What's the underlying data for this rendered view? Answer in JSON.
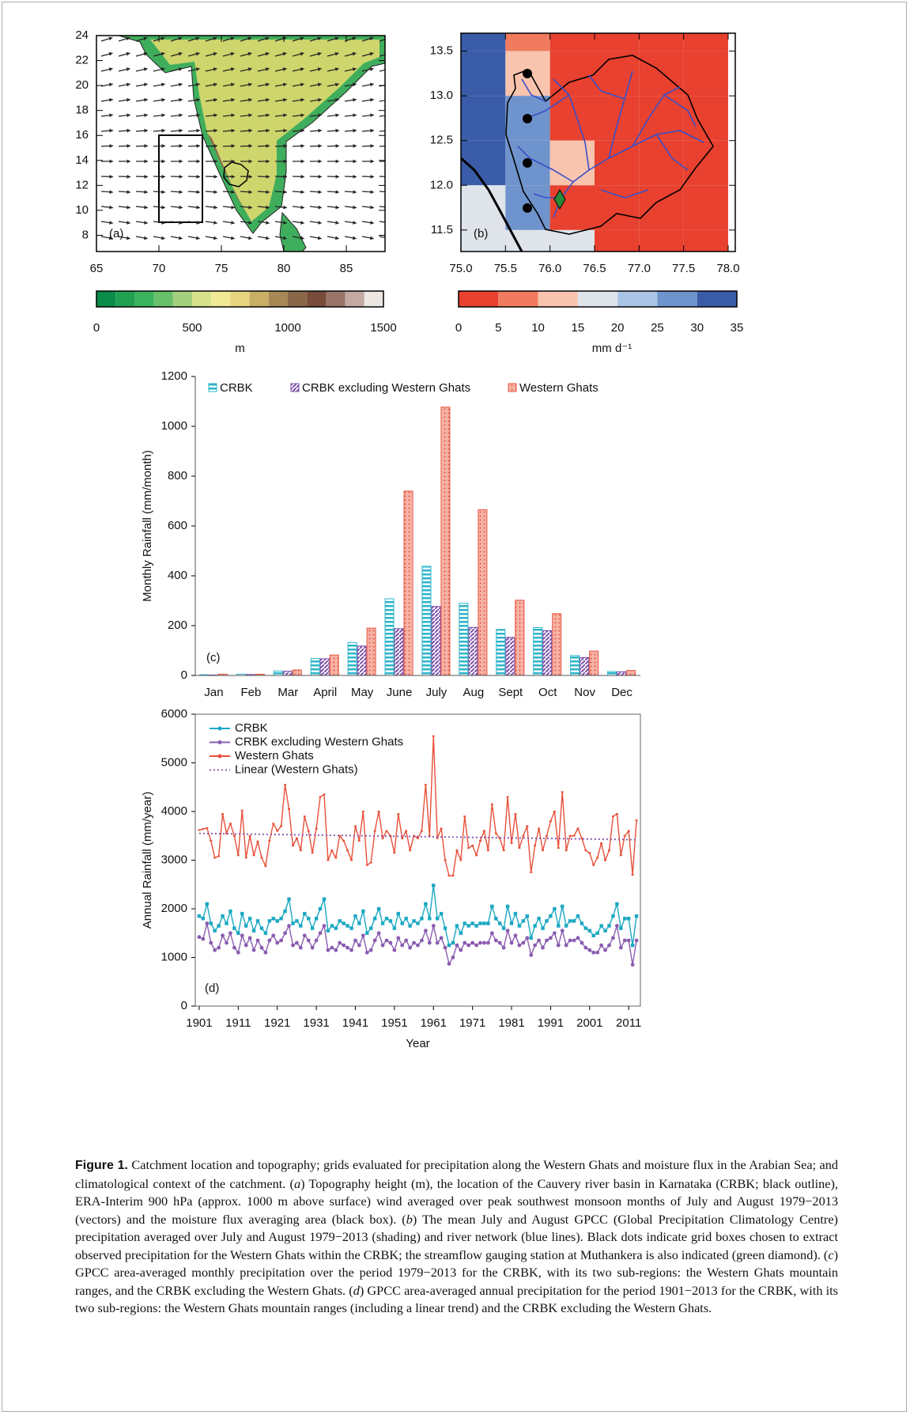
{
  "chart_data": [
    {
      "type": "map",
      "panel_label": "(a)",
      "xlim": [
        65,
        88.1
      ],
      "ylim": [
        6.7,
        24
      ],
      "xticks": [
        65,
        70,
        75,
        80,
        85
      ],
      "yticks": [
        8,
        10,
        12,
        14,
        16,
        18,
        20,
        22,
        24
      ],
      "colorbar": {
        "lim": [
          0,
          1500
        ],
        "ticks": [
          0,
          500,
          1000,
          1500
        ],
        "label": "m",
        "colors": [
          "#0b8c48",
          "#1fa052",
          "#3bb25e",
          "#69c06a",
          "#a2d07c",
          "#d7e28b",
          "#f0e995",
          "#e7d47f",
          "#c9ae66",
          "#a88855",
          "#8a6749",
          "#774c3b",
          "#9a7468",
          "#c4a8a2",
          "#ece6e3"
        ]
      }
    },
    {
      "type": "map",
      "panel_label": "(b)",
      "xlim": [
        75,
        78.08
      ],
      "ylim": [
        11.26,
        13.7
      ],
      "xticks": [
        {
          "value": 75,
          "label": "75.0"
        },
        75.5,
        {
          "value": 76,
          "label": "76.0"
        },
        76.5,
        {
          "value": 77,
          "label": "77.0"
        },
        77.5,
        {
          "value": 78,
          "label": "78.0"
        }
      ],
      "yticks": [
        11.5,
        {
          "value": 12,
          "label": "12.0"
        },
        12.5,
        {
          "value": 13,
          "label": "13.0"
        },
        13.5
      ],
      "cells": {
        "lon": [
          75.25,
          75.75,
          76.25,
          76.75,
          77.25,
          77.75
        ],
        "lat": [
          13.75,
          13.25,
          12.75,
          12.25,
          11.75,
          11.25
        ],
        "size": 0.5,
        "values": [
          [
            32,
            7,
            3,
            3,
            3,
            3
          ],
          [
            32,
            12,
            3,
            3,
            3,
            3
          ],
          [
            32,
            27,
            3,
            3,
            3,
            3
          ],
          [
            32,
            27,
            11,
            3,
            3,
            3
          ],
          [
            17,
            25,
            3,
            3,
            3,
            3
          ],
          [
            17,
            17,
            15,
            3,
            3,
            3
          ]
        ]
      },
      "colorbar": {
        "lim": [
          0,
          35
        ],
        "ticks": [
          0,
          5,
          10,
          15,
          20,
          25,
          30,
          35
        ],
        "label": "mm d⁻¹",
        "colors": [
          "#e8412f",
          "#f07b5f",
          "#f8c4ae",
          "#dfe4ea",
          "#a9c4e4",
          "#6f93cc",
          "#3a5ca8"
        ]
      }
    },
    {
      "type": "bar",
      "panel_label": "(c)",
      "ylabel": "Monthly Rainfall (mm/month)",
      "categories": [
        "Jan",
        "Feb",
        "Mar",
        "April",
        "May",
        "June",
        "July",
        "Aug",
        "Sept",
        "Oct",
        "Nov",
        "Dec"
      ],
      "ylim": [
        0,
        1200
      ],
      "yticks": [
        0,
        200,
        400,
        600,
        800,
        1000,
        1200
      ],
      "series": [
        {
          "name": "CRBK",
          "color": "#2bb5c9",
          "values": [
            3,
            5,
            18,
            68,
            132,
            308,
            438,
            290,
            185,
            192,
            80,
            16
          ]
        },
        {
          "name": "CRBK excluding Western Ghats",
          "color": "#7b4fa8",
          "values": [
            2,
            4,
            17,
            67,
            118,
            188,
            277,
            193,
            153,
            180,
            72,
            15
          ]
        },
        {
          "name": "Western Ghats",
          "color": "#e8543f",
          "values": [
            5,
            5,
            22,
            82,
            190,
            740,
            1077,
            665,
            302,
            248,
            98,
            20
          ]
        }
      ]
    },
    {
      "type": "line",
      "panel_label": "(d)",
      "ylabel": "Annual Rainfall (mm/year)",
      "xlabel": "Year",
      "xlim": [
        1900,
        2014
      ],
      "xticks": [
        1901,
        1911,
        1921,
        1931,
        1941,
        1951,
        1961,
        1971,
        1981,
        1991,
        2001,
        2011
      ],
      "ylim": [
        0,
        6000
      ],
      "yticks": [
        0,
        1000,
        2000,
        3000,
        4000,
        5000,
        6000
      ],
      "x": [
        1901,
        1902,
        1903,
        1904,
        1905,
        1906,
        1907,
        1908,
        1909,
        1910,
        1911,
        1912,
        1913,
        1914,
        1915,
        1916,
        1917,
        1918,
        1919,
        1920,
        1921,
        1922,
        1923,
        1924,
        1925,
        1926,
        1927,
        1928,
        1929,
        1930,
        1931,
        1932,
        1933,
        1934,
        1935,
        1936,
        1937,
        1938,
        1939,
        1940,
        1941,
        1942,
        1943,
        1944,
        1945,
        1946,
        1947,
        1948,
        1949,
        1950,
        1951,
        1952,
        1953,
        1954,
        1955,
        1956,
        1957,
        1958,
        1959,
        1960,
        1961,
        1962,
        1963,
        1964,
        1965,
        1966,
        1967,
        1968,
        1969,
        1970,
        1971,
        1972,
        1973,
        1974,
        1975,
        1976,
        1977,
        1978,
        1979,
        1980,
        1981,
        1982,
        1983,
        1984,
        1985,
        1986,
        1987,
        1988,
        1989,
        1990,
        1991,
        1992,
        1993,
        1994,
        1995,
        1996,
        1997,
        1998,
        1999,
        2000,
        2001,
        2002,
        2003,
        2004,
        2005,
        2006,
        2007,
        2008,
        2009,
        2010,
        2011,
        2012,
        2013
      ],
      "series": [
        {
          "name": "CRBK",
          "color": "#1aa8c2",
          "marker": "square",
          "values": [
            1850,
            1800,
            2100,
            1700,
            1550,
            1650,
            1850,
            1700,
            1950,
            1600,
            1500,
            1900,
            1650,
            1800,
            1550,
            1750,
            1600,
            1500,
            1750,
            1800,
            1750,
            1800,
            1950,
            2200,
            1700,
            1750,
            1650,
            1900,
            1800,
            1600,
            1800,
            2000,
            2200,
            1550,
            1650,
            1600,
            1750,
            1700,
            1650,
            1600,
            1850,
            1700,
            1950,
            1500,
            1600,
            1800,
            2000,
            1700,
            1800,
            1750,
            1600,
            1900,
            1700,
            1800,
            1650,
            1750,
            1700,
            1800,
            2100,
            1800,
            2480,
            1800,
            1900,
            1600,
            1250,
            1300,
            1650,
            1500,
            1700,
            1650,
            1700,
            1650,
            1700,
            1700,
            1700,
            2050,
            1800,
            1700,
            1600,
            2050,
            1700,
            1900,
            1650,
            1750,
            1850,
            1400,
            1650,
            1800,
            1600,
            1750,
            1850,
            2000,
            1650,
            2050,
            1650,
            1750,
            1750,
            1850,
            1700,
            1600,
            1550,
            1450,
            1500,
            1650,
            1550,
            1650,
            1850,
            2100,
            1600,
            1800,
            1800,
            1250,
            1850
          ]
        },
        {
          "name": "CRBK excluding Western Ghats",
          "color": "#8a5cb0",
          "marker": "circle",
          "values": [
            1420,
            1380,
            1700,
            1300,
            1150,
            1200,
            1450,
            1300,
            1500,
            1200,
            1100,
            1450,
            1250,
            1400,
            1150,
            1350,
            1200,
            1100,
            1350,
            1450,
            1300,
            1350,
            1500,
            1650,
            1250,
            1300,
            1200,
            1450,
            1350,
            1200,
            1350,
            1500,
            1650,
            1150,
            1200,
            1150,
            1300,
            1250,
            1200,
            1150,
            1350,
            1250,
            1450,
            1100,
            1150,
            1350,
            1500,
            1250,
            1350,
            1300,
            1150,
            1400,
            1250,
            1350,
            1200,
            1300,
            1250,
            1350,
            1550,
            1300,
            1650,
            1300,
            1400,
            1200,
            870,
            1000,
            1250,
            1150,
            1300,
            1250,
            1300,
            1250,
            1300,
            1300,
            1300,
            1500,
            1350,
            1300,
            1200,
            1550,
            1300,
            1450,
            1250,
            1300,
            1400,
            1050,
            1250,
            1350,
            1200,
            1350,
            1400,
            1500,
            1250,
            1550,
            1250,
            1350,
            1350,
            1400,
            1300,
            1200,
            1150,
            1100,
            1100,
            1250,
            1150,
            1250,
            1400,
            1650,
            1200,
            1350,
            1350,
            850,
            1350
          ]
        },
        {
          "name": "Western Ghats",
          "color": "#e8503a",
          "marker": "dash",
          "values": [
            3620,
            3640,
            3660,
            3400,
            3050,
            3080,
            3950,
            3550,
            3750,
            3500,
            3100,
            4020,
            3050,
            3500,
            3100,
            3380,
            3050,
            2880,
            3400,
            3750,
            3600,
            3700,
            4550,
            4050,
            3300,
            3450,
            3200,
            3900,
            3600,
            3150,
            3650,
            4300,
            4350,
            3000,
            3200,
            3050,
            3500,
            3400,
            3200,
            3000,
            3700,
            3400,
            4000,
            2900,
            2950,
            3600,
            4000,
            3450,
            3600,
            3500,
            3150,
            3950,
            3450,
            3600,
            3200,
            3500,
            3450,
            3600,
            4550,
            3500,
            5550,
            3450,
            3650,
            3000,
            2680,
            2680,
            3200,
            3000,
            3900,
            3250,
            3300,
            3100,
            3400,
            3600,
            3200,
            4150,
            3550,
            3450,
            3200,
            4300,
            3350,
            3950,
            3250,
            3500,
            3700,
            2750,
            3300,
            3650,
            3200,
            3500,
            3800,
            4000,
            3250,
            4400,
            3200,
            3500,
            3500,
            3650,
            3450,
            3200,
            3150,
            2900,
            3050,
            3350,
            3000,
            3200,
            3900,
            3950,
            3100,
            3500,
            3600,
            2700,
            3820
          ]
        },
        {
          "name": "Linear  (Western Ghats)",
          "color": "#8a5cb0",
          "dashed": true,
          "x": [
            1901,
            2013
          ],
          "values": [
            3550,
            3420
          ]
        }
      ]
    }
  ],
  "caption": {
    "label": "Figure 1.",
    "parts": [
      " Catchment location and topography; grids evaluated for precipitation along the Western Ghats and moisture flux in the Arabian Sea; and climatological context of the catchment. (",
      "a",
      ") Topography height (m), the location of the Cauvery river basin in Karnataka (CRBK; black outline), ERA-Interim 900 hPa (approx. 1000 m above surface) wind averaged over peak southwest monsoon months of July and August 1979−2013 (vectors) and the moisture flux averaging area (black box). (",
      "b",
      ") The mean July and August GPCC (Global Precipitation Climatology Centre) precipitation averaged over July and August 1979−2013 (shading) and river network (blue lines). Black dots indicate grid boxes chosen to extract observed precipitation for the Western Ghats within the CRBK; the streamflow gauging station at Muthankera is also indicated (green diamond). (",
      "c",
      ") GPCC area-averaged monthly precipitation over the period 1979−2013 for the CRBK, with its two sub-regions: the Western Ghats mountain ranges, and the CRBK excluding the Western Ghats. (",
      "d",
      ") GPCC area-averaged annual precipitation for the period 1901−2013 for the CRBK, with its two sub-regions: the Western Ghats mountain ranges (including a linear trend) and the CRBK excluding the Western Ghats."
    ]
  }
}
